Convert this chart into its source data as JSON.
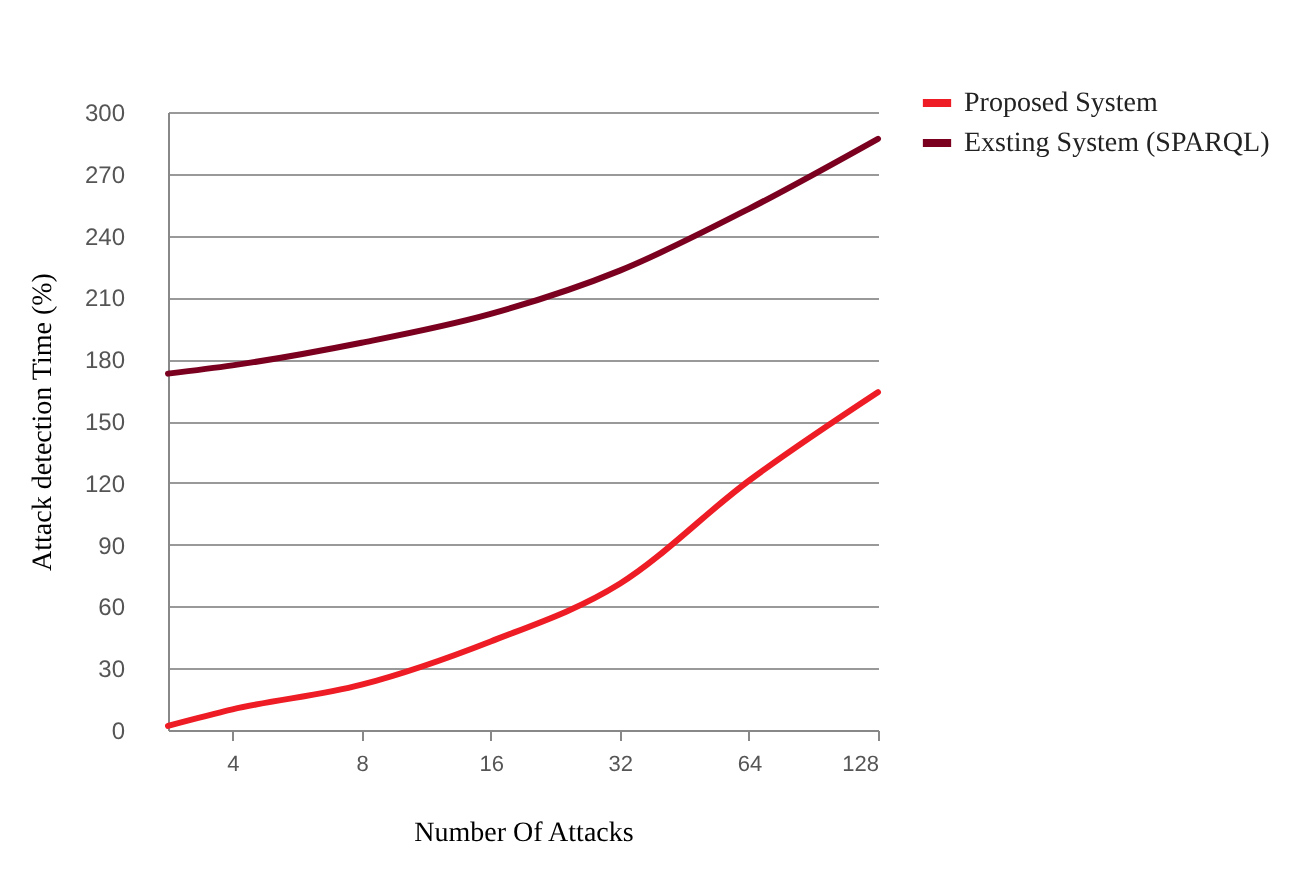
{
  "chart_data": {
    "type": "line",
    "xlabel": "Number Of Attacks",
    "ylabel": "Attack detection Time (%)",
    "log": "x",
    "xlim": [
      2.83,
      128
    ],
    "xticks": [
      4,
      8,
      16,
      32,
      64,
      128
    ],
    "ylim": [
      0,
      300
    ],
    "yticks": [
      0,
      30,
      60,
      90,
      120,
      150,
      180,
      210,
      240,
      270,
      300
    ],
    "grid": "y",
    "legend": "top right",
    "marker": "none",
    "line_style": "solid",
    "x": [
      2.83,
      4,
      8,
      16,
      32,
      64,
      128
    ],
    "series": [
      {
        "name": "Proposed System",
        "color": "#ee1c25",
        "values": [
          2,
          10,
          22,
          43,
          71,
          121,
          164
        ]
      },
      {
        "name": "Exsting System (SPARQL)",
        "color": "#7b0020",
        "values": [
          173,
          177,
          188,
          202,
          223,
          253,
          287
        ]
      }
    ]
  }
}
